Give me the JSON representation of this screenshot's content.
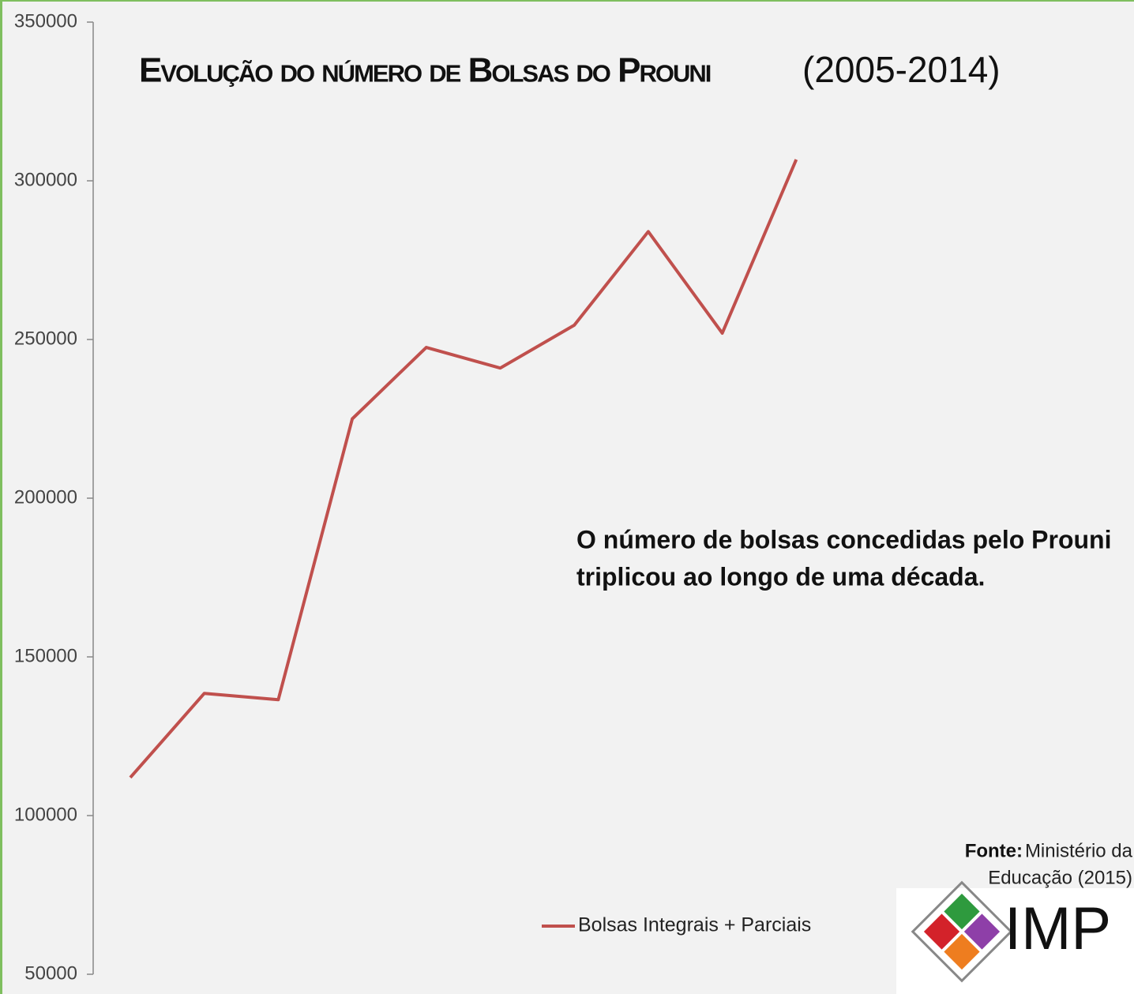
{
  "chart_data": {
    "type": "line",
    "title": "Evolução do número de Bolsas do Prouni",
    "subtitle": "(2005-2014)",
    "annotation": [
      "O número de bolsas concedidas pelo Prouni",
      "triplicou ao longo de uma década."
    ],
    "source": {
      "label": "Fonte:",
      "text": [
        "Ministério da",
        "Educação (2015)"
      ]
    },
    "logo": "IMP",
    "categories": [
      null,
      null,
      null,
      null,
      null,
      null,
      null,
      null,
      null,
      null
    ],
    "series": [
      {
        "name": "Bolsas Integrais + Parciais",
        "color": "#c0504d",
        "values": [
          112000,
          138500,
          136500,
          225000,
          247500,
          241000,
          254500,
          284000,
          252000,
          306700
        ]
      }
    ],
    "ylim": [
      50000,
      350000
    ],
    "yticks": [
      50000,
      100000,
      150000,
      200000,
      250000,
      300000,
      350000
    ],
    "grid": false,
    "legend": "bottom"
  }
}
